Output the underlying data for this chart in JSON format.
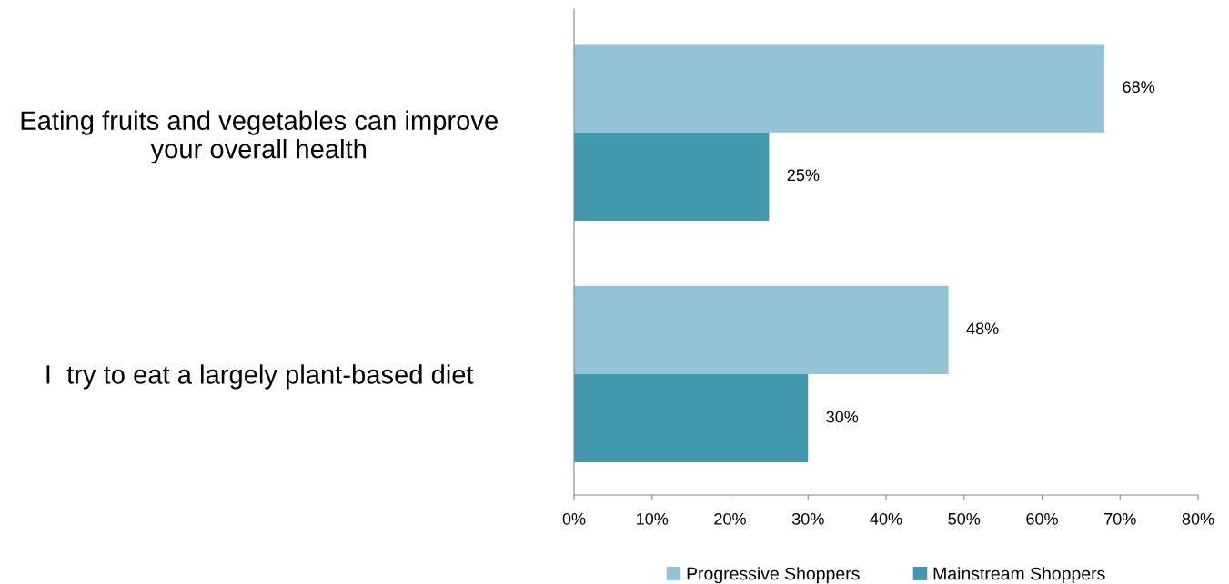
{
  "chart_data": {
    "type": "bar",
    "orientation": "horizontal",
    "categories": [
      "Eating fruits and vegetables can improve\nyour overall health",
      "I  try to eat a largely plant-based diet"
    ],
    "series": [
      {
        "name": "Progressive Shoppers",
        "color": "#92c4d5",
        "values": [
          68,
          48
        ],
        "value_labels": [
          "68%",
          "48%"
        ]
      },
      {
        "name": "Mainstream Shoppers",
        "color": "#4198af",
        "values": [
          25,
          30
        ],
        "value_labels": [
          "25%",
          "30%"
        ]
      }
    ],
    "xlim": [
      0,
      80
    ],
    "xticks": [
      {
        "value": 0,
        "label": "0%"
      },
      {
        "value": 10,
        "label": "10%"
      },
      {
        "value": 20,
        "label": "20%"
      },
      {
        "value": 30,
        "label": "30%"
      },
      {
        "value": 40,
        "label": "40%"
      },
      {
        "value": 50,
        "label": "50%"
      },
      {
        "value": 60,
        "label": "60%"
      },
      {
        "value": 70,
        "label": "70%"
      },
      {
        "value": 80,
        "label": "80%"
      }
    ],
    "grid": false,
    "legend": "bottom"
  }
}
